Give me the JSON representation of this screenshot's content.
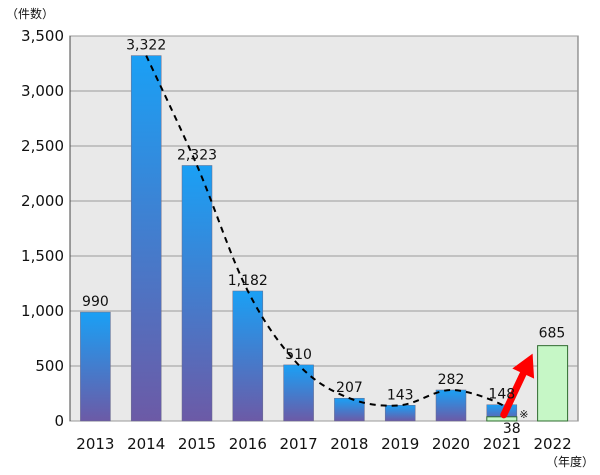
{
  "chart_data": {
    "type": "bar",
    "y_unit_label": "（件数）",
    "x_unit_label": "（年度）",
    "categories": [
      "2013",
      "2014",
      "2015",
      "2016",
      "2017",
      "2018",
      "2019",
      "2020",
      "2021",
      "2022"
    ],
    "series": [
      {
        "values": [
          990,
          3322,
          2323,
          1182,
          510,
          207,
          143,
          282,
          148,
          null
        ],
        "labels": [
          "990",
          "3,322",
          "2,323",
          "1,182",
          "510",
          "207",
          "143",
          "282",
          "148",
          ""
        ]
      },
      {
        "values": [
          null,
          null,
          null,
          null,
          null,
          null,
          null,
          null,
          38,
          685
        ],
        "labels": [
          "",
          "",
          "",
          "",
          "",
          "",
          "",
          "",
          "38",
          "685"
        ]
      }
    ],
    "annotation_mark": "※",
    "ylim": [
      0,
      3500
    ],
    "yticks": [
      0,
      500,
      1000,
      1500,
      2000,
      2500,
      3000,
      3500
    ],
    "ytick_labels": [
      "0",
      "500",
      "1,000",
      "1,500",
      "2,000",
      "2,500",
      "3,000",
      "3,500"
    ],
    "trend_line": "dashed",
    "grid": true,
    "colors": {
      "bar_gradient_top": "#1aa0f5",
      "bar_gradient_bottom": "#6c5aa6",
      "light_bar_fill": "#c6f7c6",
      "light_bar_stroke": "#2f6b2f",
      "arrow": "#ff0000",
      "plot_bg": "#e9e9e9",
      "grid": "#9a9a9a",
      "trend": "#000000"
    }
  }
}
